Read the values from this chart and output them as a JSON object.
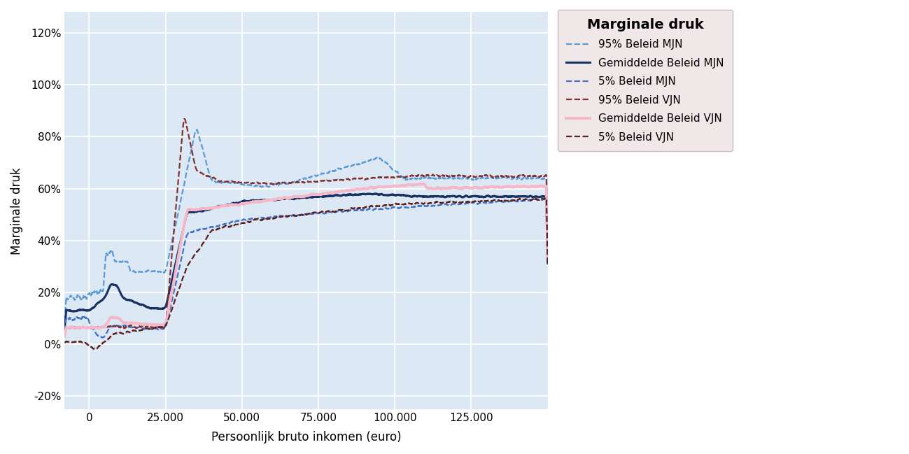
{
  "title": "Marginale druk",
  "xlabel": "Persoonlijk bruto inkomen (euro)",
  "ylabel": "Marginale druk",
  "xlim": [
    -8000,
    150000
  ],
  "ylim": [
    -0.25,
    1.28
  ],
  "yticks": [
    -0.2,
    0.0,
    0.2,
    0.4,
    0.6,
    0.8,
    1.0,
    1.2
  ],
  "ytick_labels": [
    "-20%",
    "0%",
    "20%",
    "40%",
    "60%",
    "80%",
    "100%",
    "120%"
  ],
  "xticks": [
    0,
    25000,
    50000,
    75000,
    100000,
    125000
  ],
  "xtick_labels": [
    "0",
    "25.000",
    "50.000",
    "75.000",
    "100.000",
    "125.000"
  ],
  "bg_color": "#dce9f5",
  "grid_color": "#ffffff",
  "fig_bg": "#ffffff",
  "colors": {
    "mjn_95": "#5b9bd5",
    "mjn_mean": "#1a3263",
    "mjn_5": "#4472c4",
    "vjn_95": "#833232",
    "vjn_mean": "#f4b8c8",
    "vjn_5": "#5c2020"
  },
  "legend_labels": [
    "95% Beleid MJN",
    "Gemiddelde Beleid MJN",
    "5% Beleid MJN",
    "95% Beleid VJN",
    "Gemiddelde Beleid VJN",
    "5% Beleid VJN"
  ],
  "legend_bg": "#f0e8e8",
  "legend_edge": "#ccbbbb"
}
